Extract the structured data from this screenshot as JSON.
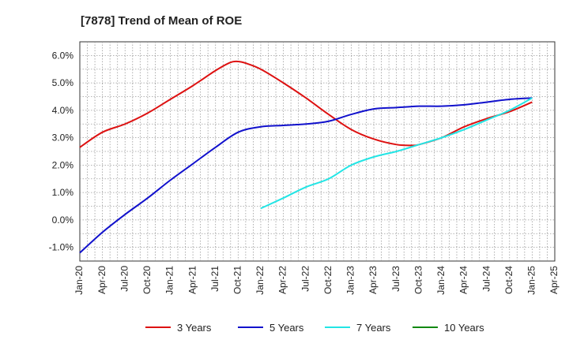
{
  "chart_data": {
    "type": "line",
    "title": "[7878]  Trend of Mean of ROE",
    "xlabel": "",
    "ylabel": "",
    "ylim": [
      -1.5,
      6.5
    ],
    "yticks": [
      -1.0,
      0.0,
      1.0,
      2.0,
      3.0,
      4.0,
      5.0,
      6.0
    ],
    "ytick_labels": [
      "-1.0%",
      "0.0%",
      "1.0%",
      "2.0%",
      "3.0%",
      "4.0%",
      "5.0%",
      "6.0%"
    ],
    "xticks": [
      "2020-01",
      "2020-04",
      "2020-07",
      "2020-10",
      "2021-01",
      "2021-04",
      "2021-07",
      "2021-10",
      "2022-01",
      "2022-04",
      "2022-07",
      "2022-10",
      "2023-01",
      "2023-04",
      "2023-07",
      "2023-10",
      "2024-01",
      "2024-04",
      "2024-07",
      "2024-10",
      "2025-01",
      "2025-04"
    ],
    "xtick_labels": [
      "Jan-20",
      "Apr-20",
      "Jul-20",
      "Oct-20",
      "Jan-21",
      "Apr-21",
      "Jul-21",
      "Oct-21",
      "Jan-22",
      "Apr-22",
      "Jul-22",
      "Oct-22",
      "Jan-23",
      "Apr-23",
      "Jul-23",
      "Oct-23",
      "Jan-24",
      "Apr-24",
      "Jul-24",
      "Oct-24",
      "Jan-25",
      "Apr-25"
    ],
    "grid": true,
    "legend_position": "bottom",
    "series": [
      {
        "name": "3 Years",
        "color": "#dd1111",
        "x": [
          "2020-01",
          "2020-04",
          "2020-07",
          "2020-10",
          "2021-01",
          "2021-04",
          "2021-07",
          "2021-09",
          "2021-10",
          "2021-11",
          "2022-01",
          "2022-04",
          "2022-07",
          "2022-10",
          "2023-01",
          "2023-04",
          "2023-07",
          "2023-09",
          "2023-10",
          "2024-01",
          "2024-04",
          "2024-07",
          "2024-10",
          "2025-01"
        ],
        "values": [
          2.65,
          3.2,
          3.5,
          3.9,
          4.4,
          4.9,
          5.45,
          5.75,
          5.78,
          5.72,
          5.5,
          5.0,
          4.45,
          3.85,
          3.3,
          2.95,
          2.75,
          2.72,
          2.75,
          3.0,
          3.4,
          3.7,
          3.95,
          4.3
        ]
      },
      {
        "name": "5 Years",
        "color": "#1111cc",
        "x": [
          "2020-01",
          "2020-04",
          "2020-07",
          "2020-10",
          "2021-01",
          "2021-04",
          "2021-07",
          "2021-10",
          "2022-01",
          "2022-04",
          "2022-07",
          "2022-10",
          "2023-01",
          "2023-04",
          "2023-07",
          "2023-10",
          "2024-01",
          "2024-04",
          "2024-07",
          "2024-10",
          "2025-01"
        ],
        "values": [
          -1.2,
          -0.45,
          0.2,
          0.8,
          1.45,
          2.05,
          2.65,
          3.2,
          3.4,
          3.45,
          3.5,
          3.6,
          3.85,
          4.05,
          4.1,
          4.15,
          4.15,
          4.2,
          4.3,
          4.4,
          4.45
        ]
      },
      {
        "name": "7 Years",
        "color": "#22e5e5",
        "x": [
          "2022-01",
          "2022-04",
          "2022-07",
          "2022-10",
          "2023-01",
          "2023-04",
          "2023-07",
          "2023-10",
          "2024-01",
          "2024-04",
          "2024-07",
          "2024-10",
          "2025-01"
        ],
        "values": [
          0.42,
          0.8,
          1.2,
          1.5,
          2.0,
          2.3,
          2.5,
          2.75,
          3.0,
          3.3,
          3.65,
          4.0,
          4.45
        ]
      },
      {
        "name": "10 Years",
        "color": "#118811",
        "x": [],
        "values": []
      }
    ]
  }
}
